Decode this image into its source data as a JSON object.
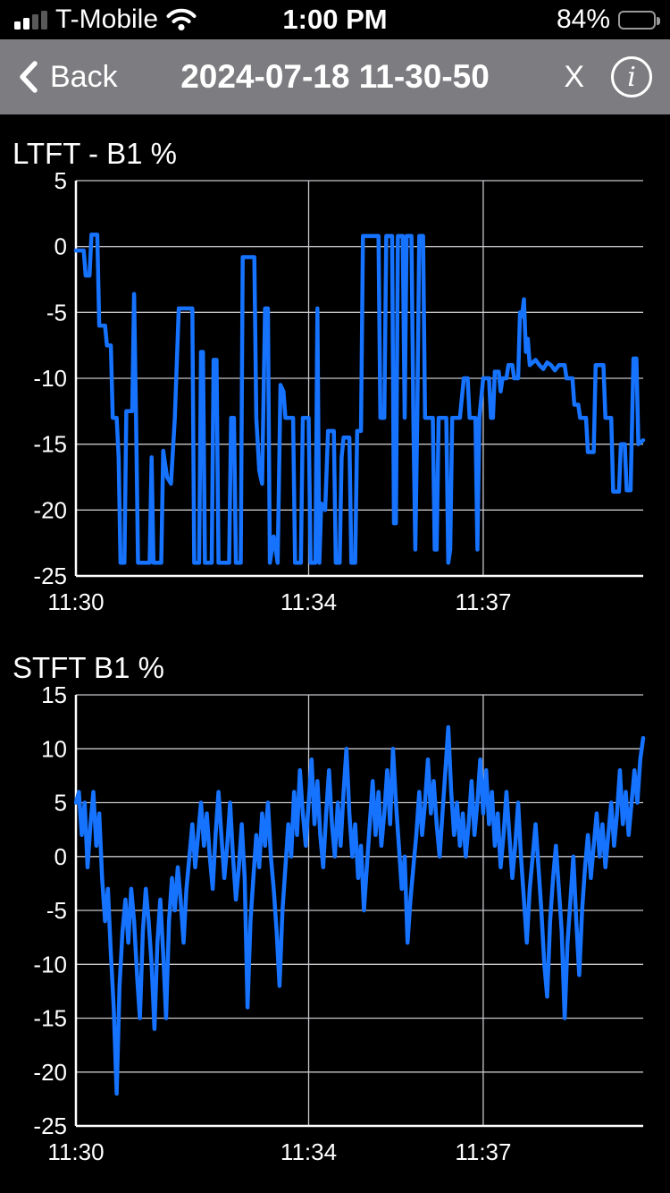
{
  "status_bar": {
    "carrier": "T-Mobile",
    "time": "1:00 PM",
    "battery_percent": "84%"
  },
  "nav_bar": {
    "back_label": "Back",
    "title": "2024-07-18 11-30-50",
    "close_label": "X",
    "info_label": "i"
  },
  "chart_data": [
    {
      "type": "line",
      "title": "LTFT - B1 %",
      "line_color": "#1673ff",
      "ylim": [
        -25,
        5
      ],
      "yticks": [
        5,
        0,
        -5,
        -10,
        -15,
        -20,
        -25
      ],
      "xlim_seconds": [
        0,
        585
      ],
      "xticks": [
        {
          "t": 0,
          "label": "11:30"
        },
        {
          "t": 240,
          "label": "11:34"
        },
        {
          "t": 420,
          "label": "11:37"
        }
      ],
      "points_t_v": [
        [
          0,
          -0.3
        ],
        [
          8,
          -0.3
        ],
        [
          10,
          -2.2
        ],
        [
          14,
          -2.2
        ],
        [
          16,
          0.9
        ],
        [
          22,
          0.9
        ],
        [
          24,
          -6
        ],
        [
          30,
          -6
        ],
        [
          32,
          -7.5
        ],
        [
          36,
          -7.5
        ],
        [
          38,
          -13
        ],
        [
          42,
          -13
        ],
        [
          44,
          -16
        ],
        [
          46,
          -24
        ],
        [
          50,
          -24
        ],
        [
          52,
          -12.5
        ],
        [
          58,
          -12.5
        ],
        [
          60,
          -3.6
        ],
        [
          62,
          -13
        ],
        [
          64,
          -24
        ],
        [
          76,
          -24
        ],
        [
          78,
          -16
        ],
        [
          80,
          -24
        ],
        [
          88,
          -24
        ],
        [
          90,
          -15.5
        ],
        [
          94,
          -17.5
        ],
        [
          98,
          -18
        ],
        [
          102,
          -13
        ],
        [
          106,
          -4.7
        ],
        [
          120,
          -4.7
        ],
        [
          122,
          -24
        ],
        [
          127,
          -24
        ],
        [
          129,
          -8
        ],
        [
          131,
          -8
        ],
        [
          133,
          -24
        ],
        [
          140,
          -24
        ],
        [
          142,
          -8.6
        ],
        [
          145,
          -8.6
        ],
        [
          147,
          -24
        ],
        [
          158,
          -24
        ],
        [
          160,
          -13
        ],
        [
          163,
          -13
        ],
        [
          165,
          -24
        ],
        [
          170,
          -24
        ],
        [
          172,
          -0.8
        ],
        [
          184,
          -0.8
        ],
        [
          186,
          -13
        ],
        [
          189,
          -17
        ],
        [
          192,
          -18
        ],
        [
          195,
          -4.7
        ],
        [
          198,
          -4.7
        ],
        [
          200,
          -24
        ],
        [
          204,
          -22
        ],
        [
          208,
          -24
        ],
        [
          211,
          -10.5
        ],
        [
          214,
          -11
        ],
        [
          216,
          -13
        ],
        [
          224,
          -13
        ],
        [
          226,
          -24
        ],
        [
          232,
          -24
        ],
        [
          234,
          -13
        ],
        [
          240,
          -13
        ],
        [
          242,
          -24
        ],
        [
          247,
          -24
        ],
        [
          249,
          -4.7
        ],
        [
          251,
          -24
        ],
        [
          253,
          -19.5
        ],
        [
          257,
          -20
        ],
        [
          260,
          -14
        ],
        [
          266,
          -14
        ],
        [
          268,
          -24
        ],
        [
          272,
          -24
        ],
        [
          274,
          -16
        ],
        [
          276,
          -14.5
        ],
        [
          282,
          -14.5
        ],
        [
          284,
          -24
        ],
        [
          288,
          -24
        ],
        [
          290,
          -14
        ],
        [
          294,
          -14
        ],
        [
          296,
          0.8
        ],
        [
          312,
          0.8
        ],
        [
          314,
          -13
        ],
        [
          318,
          -13
        ],
        [
          320,
          0.8
        ],
        [
          326,
          0.8
        ],
        [
          328,
          -21
        ],
        [
          330,
          -21
        ],
        [
          332,
          0.8
        ],
        [
          337,
          0.8
        ],
        [
          339,
          -13
        ],
        [
          341,
          0.8
        ],
        [
          346,
          0.8
        ],
        [
          348,
          -13
        ],
        [
          350,
          -23
        ],
        [
          352,
          -13
        ],
        [
          354,
          0.8
        ],
        [
          358,
          0.8
        ],
        [
          360,
          -13
        ],
        [
          368,
          -13
        ],
        [
          370,
          -23
        ],
        [
          372,
          -23
        ],
        [
          374,
          -13
        ],
        [
          382,
          -13
        ],
        [
          384,
          -24
        ],
        [
          386,
          -23
        ],
        [
          388,
          -13
        ],
        [
          396,
          -13
        ],
        [
          400,
          -10
        ],
        [
          404,
          -10
        ],
        [
          406,
          -13
        ],
        [
          412,
          -13
        ],
        [
          414,
          -23
        ],
        [
          416,
          -13
        ],
        [
          420,
          -10
        ],
        [
          426,
          -10
        ],
        [
          428,
          -13
        ],
        [
          430,
          -13
        ],
        [
          432,
          -9.5
        ],
        [
          436,
          -9.5
        ],
        [
          438,
          -11
        ],
        [
          440,
          -10
        ],
        [
          444,
          -10
        ],
        [
          446,
          -9
        ],
        [
          450,
          -9
        ],
        [
          452,
          -10
        ],
        [
          456,
          -10
        ],
        [
          458,
          -5
        ],
        [
          460,
          -5.3
        ],
        [
          462,
          -4
        ],
        [
          464,
          -8
        ],
        [
          466,
          -7
        ],
        [
          468,
          -9
        ],
        [
          474,
          -8.6
        ],
        [
          478,
          -9
        ],
        [
          482,
          -9.3
        ],
        [
          486,
          -8.8
        ],
        [
          490,
          -9
        ],
        [
          494,
          -9.4
        ],
        [
          498,
          -9
        ],
        [
          504,
          -9
        ],
        [
          506,
          -10
        ],
        [
          512,
          -10
        ],
        [
          514,
          -12
        ],
        [
          518,
          -12
        ],
        [
          520,
          -13
        ],
        [
          526,
          -13
        ],
        [
          528,
          -15.6
        ],
        [
          534,
          -15.6
        ],
        [
          536,
          -9
        ],
        [
          544,
          -9
        ],
        [
          546,
          -13
        ],
        [
          552,
          -13
        ],
        [
          554,
          -18.6
        ],
        [
          560,
          -18.6
        ],
        [
          562,
          -15
        ],
        [
          566,
          -15
        ],
        [
          568,
          -18.5
        ],
        [
          572,
          -18.5
        ],
        [
          575,
          -8.5
        ],
        [
          578,
          -8.5
        ],
        [
          580,
          -15
        ],
        [
          585,
          -14.7
        ]
      ]
    },
    {
      "type": "line",
      "title": "STFT B1 %",
      "line_color": "#1673ff",
      "ylim": [
        -25,
        15
      ],
      "yticks": [
        15,
        10,
        5,
        0,
        -5,
        -10,
        -15,
        -20,
        -25
      ],
      "xlim_seconds": [
        0,
        585
      ],
      "xticks": [
        {
          "t": 0,
          "label": "11:30"
        },
        {
          "t": 240,
          "label": "11:34"
        },
        {
          "t": 420,
          "label": "11:37"
        }
      ],
      "sample_step_seconds": 3,
      "values": [
        5,
        6,
        2,
        5,
        -1,
        3,
        6,
        1,
        4,
        -2,
        -6,
        -3,
        -9,
        -14,
        -22,
        -12,
        -7,
        -4,
        -8,
        -3,
        -6,
        -11,
        -15,
        -7,
        -3,
        -6,
        -10,
        -16,
        -8,
        -4,
        -9,
        -15,
        -6,
        -2,
        -5,
        -1,
        -4,
        -8,
        -3,
        0,
        3,
        -1,
        2,
        5,
        1,
        4,
        0,
        -3,
        2,
        6,
        2,
        -2,
        1,
        5,
        0,
        -4,
        -1,
        3,
        -2,
        -14,
        -6,
        -2,
        2,
        -1,
        4,
        1,
        5,
        0,
        -3,
        -7,
        -12,
        -5,
        -1,
        3,
        0,
        6,
        2,
        8,
        4,
        1,
        5,
        9,
        3,
        7,
        2,
        -1,
        4,
        8,
        3,
        0,
        5,
        1,
        6,
        10,
        4,
        0,
        3,
        -2,
        1,
        -5,
        -1,
        3,
        7,
        2,
        6,
        1,
        4,
        8,
        3,
        10,
        5,
        1,
        -3,
        0,
        -8,
        -4,
        -1,
        2,
        6,
        2,
        5,
        9,
        4,
        7,
        3,
        0,
        4,
        8,
        12,
        6,
        2,
        5,
        1,
        4,
        0,
        3,
        7,
        2,
        5,
        9,
        4,
        8,
        3,
        6,
        1,
        4,
        -1,
        2,
        6,
        2,
        -2,
        1,
        5,
        0,
        -4,
        -8,
        -3,
        0,
        3,
        -1,
        -5,
        -10,
        -13,
        -6,
        -2,
        1,
        -3,
        -7,
        -15,
        -8,
        -4,
        0,
        -6,
        -11,
        -5,
        -1,
        2,
        -2,
        1,
        4,
        0,
        3,
        -1,
        2,
        5,
        1,
        4,
        8,
        3,
        6,
        2,
        5,
        8,
        5,
        9,
        11
      ]
    }
  ]
}
